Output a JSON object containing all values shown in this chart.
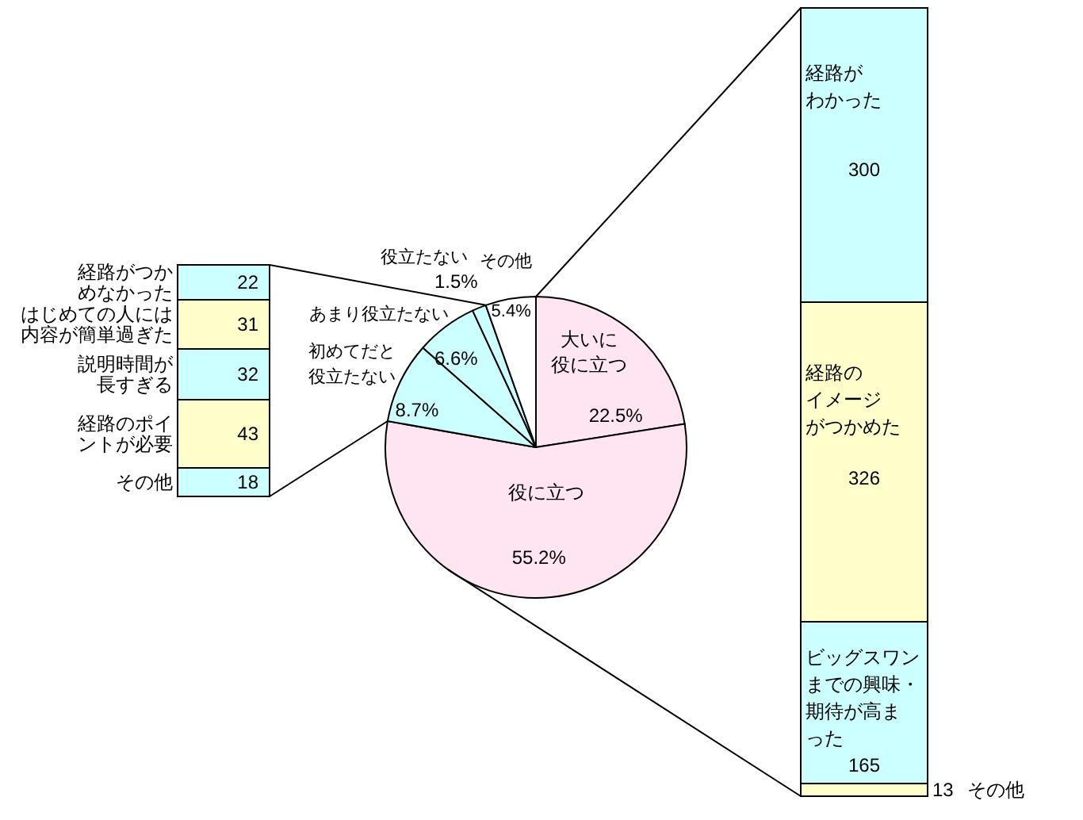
{
  "chart_data": [
    {
      "type": "bar",
      "stacked": true,
      "categories": [
        null
      ],
      "series": [
        {
          "name": "その他",
          "color": "#ccffff",
          "values": [
            18
          ]
        },
        {
          "name": "経路のポイントが必要",
          "color": "#ffffcc",
          "values": [
            43
          ]
        },
        {
          "name": "説明時間が長すぎる",
          "color": "#ccffff",
          "values": [
            32
          ]
        },
        {
          "name": "はじめての人には内容が簡単過ぎた",
          "color": "#ffffcc",
          "values": [
            31
          ]
        },
        {
          "name": "経路がつかめなかった",
          "color": "#ccffff",
          "values": [
            22
          ]
        }
      ],
      "data_labels": true
    },
    {
      "type": "pie",
      "categories": [
        "大いに役に立つ",
        "役に立つ",
        "初めてだと役立たない",
        "あまり役立たない",
        "役立たない",
        "その他"
      ],
      "values": [
        22.5,
        55.2,
        8.7,
        6.6,
        1.5,
        5.4
      ],
      "value_labels": [
        "22.5%",
        "55.2%",
        "8.7%",
        "6.6%",
        "1.5%",
        "5.4%"
      ],
      "colors": [
        "#ffe4f2",
        "#ffe4f2",
        "#ccffff",
        "#ccffff",
        "#ccffff",
        "#ffffff"
      ]
    },
    {
      "type": "bar",
      "stacked": true,
      "categories": [
        null
      ],
      "series": [
        {
          "name": "その他",
          "color": "#ffffcc",
          "values": [
            13
          ]
        },
        {
          "name": "ビッグスワンまでの興味・期待が高まった",
          "color": "#ccffff",
          "values": [
            165
          ]
        },
        {
          "name": "経路のイメージがつかめた",
          "color": "#ffffcc",
          "values": [
            326
          ]
        },
        {
          "name": "経路がわかった",
          "color": "#ccffff",
          "values": [
            300
          ]
        }
      ],
      "data_labels": true
    }
  ]
}
